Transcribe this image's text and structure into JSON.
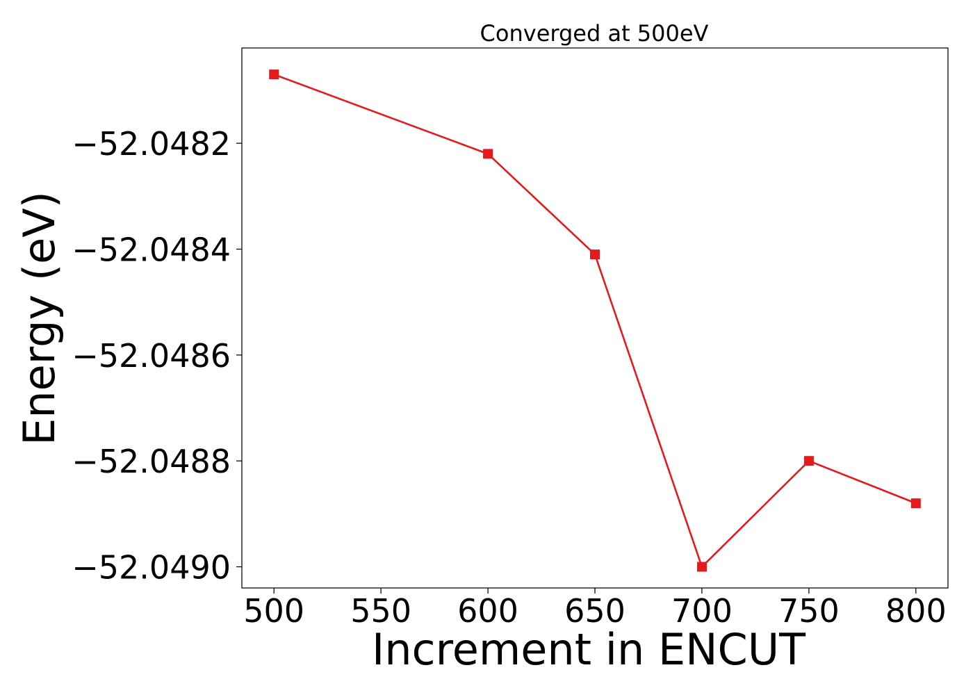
{
  "chart_data": {
    "type": "line",
    "title": "Converged at 500eV",
    "xlabel": "Increment in ENCUT",
    "ylabel": "Energy (eV)",
    "x": [
      500,
      600,
      650,
      700,
      750,
      800
    ],
    "series": [
      {
        "values": [
          -52.04807,
          -52.04822,
          -52.04841,
          -52.049,
          -52.0488,
          -52.04888
        ],
        "color": "#e41a1c",
        "marker": "square"
      }
    ],
    "xlim": [
      485,
      815
    ],
    "ylim": [
      -52.04904,
      -52.04802
    ],
    "xticks": [
      500,
      550,
      600,
      650,
      700,
      750,
      800
    ],
    "xtick_labels": [
      "500",
      "550",
      "600",
      "650",
      "700",
      "750",
      "800"
    ],
    "yticks": [
      -52.049,
      -52.0488,
      -52.0486,
      -52.0484,
      -52.0482
    ],
    "ytick_labels": [
      "−52.0490",
      "−52.0488",
      "−52.0486",
      "−52.0484",
      "−52.0482"
    ],
    "grid": false,
    "legend": "none"
  }
}
